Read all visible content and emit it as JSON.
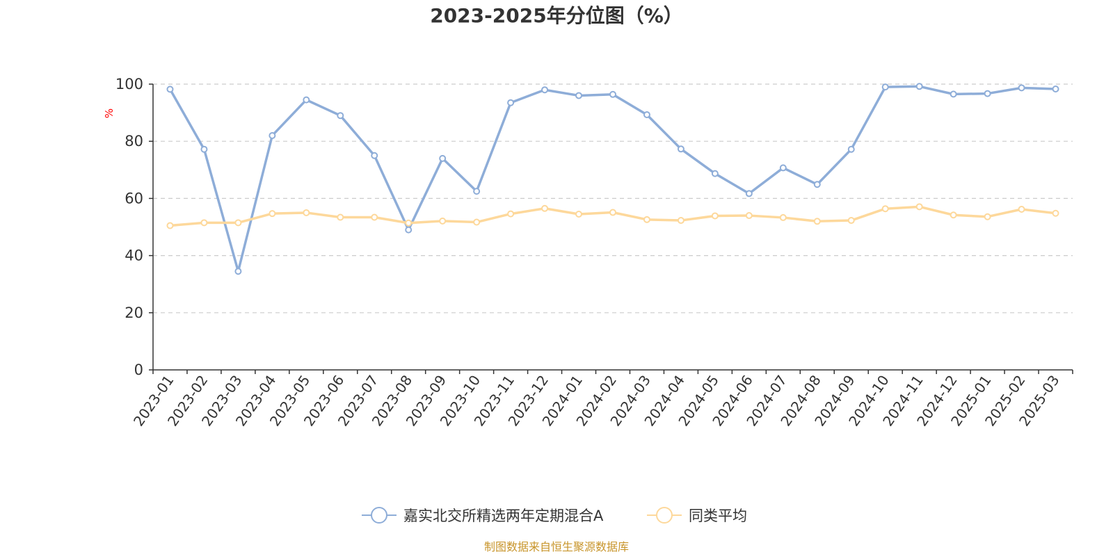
{
  "chart_data": {
    "type": "line",
    "title": "2023-2025年分位图（%）",
    "ylabel": "%",
    "ylim": [
      0,
      100
    ],
    "yticks": [
      0,
      20,
      40,
      60,
      80,
      100
    ],
    "grid": true,
    "legend_position": "bottom-center",
    "categories": [
      "2023-01",
      "2023-02",
      "2023-03",
      "2023-04",
      "2023-05",
      "2023-06",
      "2023-07",
      "2023-08",
      "2023-09",
      "2023-10",
      "2023-11",
      "2023-12",
      "2024-01",
      "2024-02",
      "2024-03",
      "2024-04",
      "2024-05",
      "2024-06",
      "2024-07",
      "2024-08",
      "2024-09",
      "2024-10",
      "2024-11",
      "2024-12",
      "2025-01",
      "2025-02",
      "2025-03"
    ],
    "series": [
      {
        "name": "嘉实北交所精选两年定期混合A",
        "color": "#8eadd8",
        "values": [
          98.2,
          77.2,
          34.5,
          82.0,
          94.5,
          89.0,
          75.0,
          49.0,
          74.0,
          62.5,
          93.5,
          98.0,
          96.0,
          96.4,
          89.3,
          77.3,
          68.7,
          61.7,
          70.7,
          64.9,
          77.2,
          99.0,
          99.2,
          96.5,
          96.7,
          98.7,
          98.3
        ]
      },
      {
        "name": "同类平均",
        "color": "#fdd89b",
        "values": [
          50.5,
          51.5,
          51.5,
          54.7,
          55.0,
          53.4,
          53.4,
          51.4,
          52.1,
          51.7,
          54.6,
          56.5,
          54.5,
          55.1,
          52.6,
          52.3,
          53.9,
          54.0,
          53.3,
          52.0,
          52.3,
          56.4,
          57.1,
          54.2,
          53.6,
          56.2,
          54.8
        ]
      }
    ],
    "source_note": "制图数据来自恒生聚源数据库"
  }
}
